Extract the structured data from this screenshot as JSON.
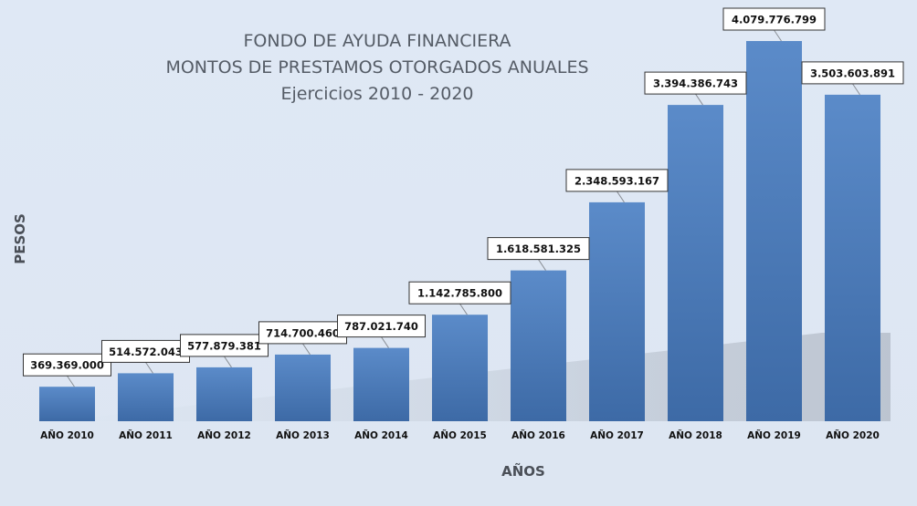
{
  "chart_data": {
    "type": "bar",
    "title": [
      "FONDO DE AYUDA FINANCIERA",
      "MONTOS DE PRESTAMOS OTORGADOS ANUALES",
      "Ejercicios 2010 - 2020"
    ],
    "xlabel": "AÑOS",
    "ylabel": "PESOS",
    "categories": [
      "AÑO 2010",
      "AÑO 2011",
      "AÑO 2012",
      "AÑO 2013",
      "AÑO 2014",
      "AÑO 2015",
      "AÑO 2016",
      "AÑO 2017",
      "AÑO 2018",
      "AÑO 2019",
      "AÑO 2020"
    ],
    "values": [
      369369000,
      514572043,
      577879381,
      714700460,
      787021740,
      1142785800,
      1618581325,
      2348593167,
      3394386743,
      4079776799,
      3503603891
    ],
    "value_labels": [
      "369.369.000",
      "514.572.043",
      "577.879.381",
      "714.700.460",
      "787.021.740",
      "1.142.785.800",
      "1.618.581.325",
      "2.348.593.167",
      "3.394.386.743",
      "4.079.776.799",
      "3.503.603.891"
    ],
    "ylim": [
      0,
      4079776799
    ],
    "grid": false,
    "legend": "none",
    "colors": {
      "bar_top": "#5b8bc9",
      "bar_bottom": "#3d6aa6",
      "background": "#dfe8f5",
      "label_box_fill": "#ffffff",
      "label_box_stroke": "#333333"
    }
  }
}
